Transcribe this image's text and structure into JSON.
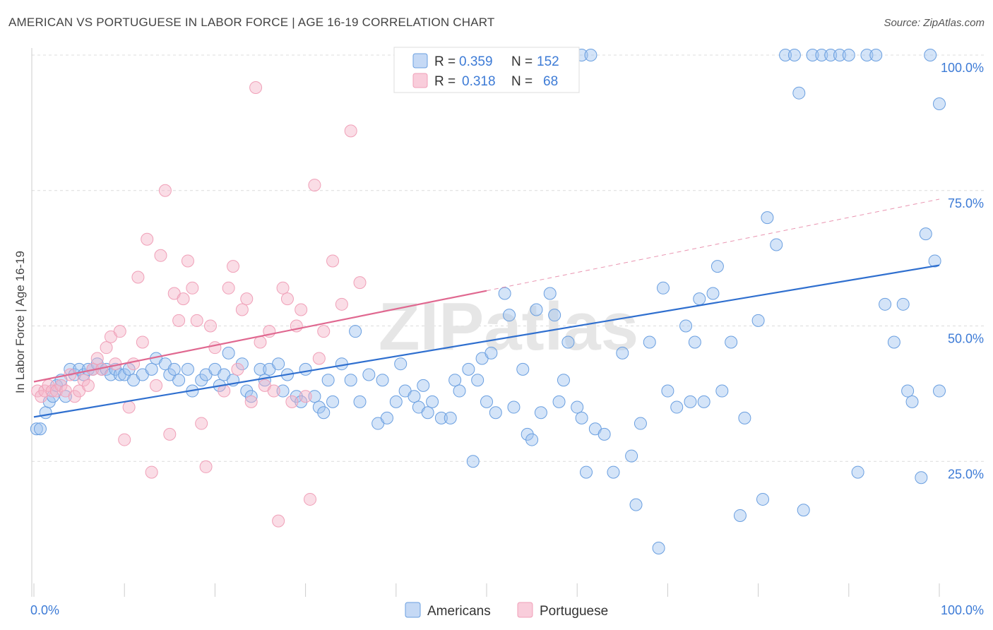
{
  "title": "AMERICAN VS PORTUGUESE IN LABOR FORCE | AGE 16-19 CORRELATION CHART",
  "source": "Source: ZipAtlas.com",
  "watermark": "ZIPatlas",
  "chart_data": {
    "type": "scatter",
    "xlabel": "",
    "ylabel": "In Labor Force | Age 16-19",
    "xlim": [
      0,
      100
    ],
    "ylim": [
      0,
      100
    ],
    "x_tick_labels": [
      "0.0%",
      "100.0%"
    ],
    "y_ticks": [
      25,
      50,
      75,
      100
    ],
    "y_tick_labels": [
      "25.0%",
      "50.0%",
      "75.0%",
      "100.0%"
    ],
    "grid": "horizontal dashed",
    "legend_position": "top-center",
    "bottom_legend": [
      "Americans",
      "Portuguese"
    ],
    "stats": [
      {
        "r_label": "R =",
        "r": "0.359",
        "n_label": "N =",
        "n": "152"
      },
      {
        "r_label": "R =",
        "r": "0.318",
        "n_label": "N =",
        "n": "68"
      }
    ],
    "series": [
      {
        "name": "Americans",
        "color": "#6a9fe0",
        "trend": {
          "x": [
            0,
            100
          ],
          "y": [
            33.2,
            61.2
          ],
          "style": "solid"
        },
        "points": [
          [
            0.3,
            31
          ],
          [
            0.7,
            31
          ],
          [
            1.3,
            34
          ],
          [
            1.7,
            36
          ],
          [
            2.1,
            37
          ],
          [
            2.5,
            39
          ],
          [
            3,
            40
          ],
          [
            3.5,
            37
          ],
          [
            4,
            42
          ],
          [
            4.5,
            41
          ],
          [
            5,
            42
          ],
          [
            5.5,
            41
          ],
          [
            6,
            42
          ],
          [
            6.5,
            42
          ],
          [
            7,
            43
          ],
          [
            7.5,
            42
          ],
          [
            8,
            42
          ],
          [
            8.5,
            41
          ],
          [
            9,
            42
          ],
          [
            9.5,
            41
          ],
          [
            10,
            41
          ],
          [
            10.5,
            42
          ],
          [
            11,
            40
          ],
          [
            12,
            41
          ],
          [
            13,
            42
          ],
          [
            13.5,
            44
          ],
          [
            14.5,
            43
          ],
          [
            15,
            41
          ],
          [
            15.5,
            42
          ],
          [
            16,
            40
          ],
          [
            17,
            42
          ],
          [
            17.5,
            38
          ],
          [
            18.5,
            40
          ],
          [
            19,
            41
          ],
          [
            20,
            42
          ],
          [
            20.5,
            39
          ],
          [
            21,
            41
          ],
          [
            21.5,
            45
          ],
          [
            22,
            40
          ],
          [
            23,
            43
          ],
          [
            23.5,
            38
          ],
          [
            24,
            37
          ],
          [
            25,
            42
          ],
          [
            25.5,
            40
          ],
          [
            26,
            42
          ],
          [
            27,
            43
          ],
          [
            27.5,
            38
          ],
          [
            28,
            41
          ],
          [
            29,
            37
          ],
          [
            29.5,
            36
          ],
          [
            30,
            42
          ],
          [
            31,
            37
          ],
          [
            31.5,
            35
          ],
          [
            32,
            34
          ],
          [
            32.5,
            40
          ],
          [
            33,
            36
          ],
          [
            34,
            43
          ],
          [
            35,
            40
          ],
          [
            35.5,
            49
          ],
          [
            36,
            36
          ],
          [
            37,
            41
          ],
          [
            38,
            32
          ],
          [
            38.5,
            40
          ],
          [
            39,
            33
          ],
          [
            40,
            36
          ],
          [
            40.5,
            43
          ],
          [
            41,
            38
          ],
          [
            42,
            37
          ],
          [
            42.5,
            35
          ],
          [
            43,
            39
          ],
          [
            43.5,
            34
          ],
          [
            44,
            36
          ],
          [
            45,
            33
          ],
          [
            46,
            33
          ],
          [
            46.5,
            40
          ],
          [
            47,
            38
          ],
          [
            48,
            42
          ],
          [
            48.5,
            25
          ],
          [
            49,
            40
          ],
          [
            49.5,
            44
          ],
          [
            50,
            36
          ],
          [
            50.5,
            45
          ],
          [
            51,
            34
          ],
          [
            52,
            56
          ],
          [
            52.5,
            52
          ],
          [
            53,
            35
          ],
          [
            54,
            42
          ],
          [
            54.5,
            30
          ],
          [
            55,
            29
          ],
          [
            55.5,
            53
          ],
          [
            56,
            34
          ],
          [
            57,
            56
          ],
          [
            57.5,
            52
          ],
          [
            58,
            36
          ],
          [
            58.5,
            40
          ],
          [
            59,
            47
          ],
          [
            60,
            35
          ],
          [
            60.5,
            33
          ],
          [
            61,
            23
          ],
          [
            62,
            31
          ],
          [
            63,
            30
          ],
          [
            64,
            23
          ],
          [
            65,
            45
          ],
          [
            66,
            26
          ],
          [
            66.5,
            17
          ],
          [
            67,
            32
          ],
          [
            68,
            47
          ],
          [
            69,
            9
          ],
          [
            69.5,
            57
          ],
          [
            70,
            38
          ],
          [
            71,
            35
          ],
          [
            72,
            50
          ],
          [
            72.5,
            36
          ],
          [
            73,
            47
          ],
          [
            73.5,
            55
          ],
          [
            74,
            36
          ],
          [
            75,
            56
          ],
          [
            75.5,
            61
          ],
          [
            76,
            38
          ],
          [
            77,
            47
          ],
          [
            78,
            15
          ],
          [
            78.5,
            33
          ],
          [
            80,
            51
          ],
          [
            80.5,
            18
          ],
          [
            81,
            70
          ],
          [
            82,
            65
          ],
          [
            83,
            100
          ],
          [
            84,
            100
          ],
          [
            84.5,
            93
          ],
          [
            85,
            16
          ],
          [
            86,
            100
          ],
          [
            87,
            100
          ],
          [
            88,
            100
          ],
          [
            89,
            100
          ],
          [
            90,
            100
          ],
          [
            91,
            23
          ],
          [
            92,
            100
          ],
          [
            93,
            100
          ],
          [
            94,
            54
          ],
          [
            95,
            47
          ],
          [
            96,
            54
          ],
          [
            97,
            36
          ],
          [
            98,
            22
          ],
          [
            98.5,
            67
          ],
          [
            99,
            100
          ],
          [
            99.5,
            62
          ],
          [
            100,
            91
          ],
          [
            100,
            38
          ],
          [
            96.5,
            38
          ],
          [
            60.5,
            100
          ],
          [
            61.5,
            100
          ]
        ]
      },
      {
        "name": "Portuguese",
        "color": "#f0a0b8",
        "trend": {
          "x": [
            0,
            50
          ],
          "y": [
            39.7,
            56.5
          ],
          "style": "solid",
          "extended_to": [
            100,
            73.4
          ],
          "extended_style": "dashed"
        },
        "points": [
          [
            0.4,
            38
          ],
          [
            0.8,
            37
          ],
          [
            1.2,
            38
          ],
          [
            1.6,
            39
          ],
          [
            2,
            38
          ],
          [
            2.5,
            38
          ],
          [
            3,
            39
          ],
          [
            3.5,
            38
          ],
          [
            4,
            41
          ],
          [
            4.5,
            37
          ],
          [
            5,
            38
          ],
          [
            5.5,
            40
          ],
          [
            6,
            39
          ],
          [
            6.5,
            42
          ],
          [
            7,
            44
          ],
          [
            7.5,
            42
          ],
          [
            8,
            46
          ],
          [
            8.5,
            48
          ],
          [
            9,
            43
          ],
          [
            9.5,
            49
          ],
          [
            10,
            29
          ],
          [
            10.5,
            35
          ],
          [
            11,
            43
          ],
          [
            11.5,
            59
          ],
          [
            12,
            47
          ],
          [
            12.5,
            66
          ],
          [
            13,
            23
          ],
          [
            13.5,
            39
          ],
          [
            14,
            63
          ],
          [
            14.5,
            75
          ],
          [
            15,
            30
          ],
          [
            15.5,
            56
          ],
          [
            16,
            51
          ],
          [
            16.5,
            55
          ],
          [
            17,
            62
          ],
          [
            17.5,
            57
          ],
          [
            18,
            51
          ],
          [
            18.5,
            32
          ],
          [
            19,
            24
          ],
          [
            19.5,
            50
          ],
          [
            20,
            46
          ],
          [
            21,
            38
          ],
          [
            21.5,
            57
          ],
          [
            22,
            61
          ],
          [
            22.5,
            42
          ],
          [
            23,
            53
          ],
          [
            23.5,
            55
          ],
          [
            24,
            36
          ],
          [
            24.5,
            94
          ],
          [
            25,
            47
          ],
          [
            25.5,
            39
          ],
          [
            26,
            49
          ],
          [
            26.5,
            38
          ],
          [
            27,
            14
          ],
          [
            27.5,
            57
          ],
          [
            28,
            55
          ],
          [
            28.5,
            36
          ],
          [
            29,
            50
          ],
          [
            29.5,
            53
          ],
          [
            30,
            37
          ],
          [
            30.5,
            18
          ],
          [
            31,
            76
          ],
          [
            31.5,
            44
          ],
          [
            32,
            49
          ],
          [
            33,
            62
          ],
          [
            34,
            54
          ],
          [
            35,
            86
          ],
          [
            36,
            58
          ]
        ]
      }
    ]
  }
}
